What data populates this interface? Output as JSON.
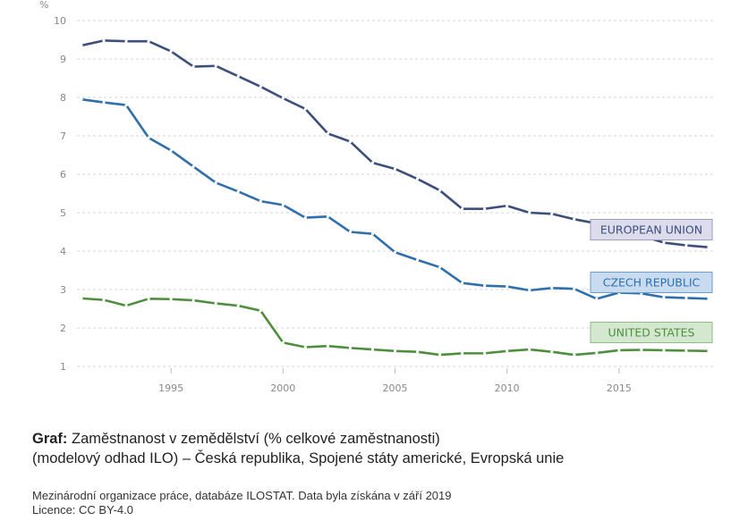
{
  "chart_data": {
    "type": "line",
    "ylabel": "%",
    "ylim": [
      1,
      10
    ],
    "yticks": [
      1,
      2,
      3,
      4,
      5,
      6,
      7,
      8,
      9,
      10
    ],
    "xlim": [
      1991,
      2019
    ],
    "xticks": [
      1995,
      2000,
      2005,
      2010,
      2015
    ],
    "x": [
      1991,
      1992,
      1993,
      1994,
      1995,
      1996,
      1997,
      1998,
      1999,
      2000,
      2001,
      2002,
      2003,
      2004,
      2005,
      2006,
      2007,
      2008,
      2009,
      2010,
      2011,
      2012,
      2013,
      2014,
      2015,
      2016,
      2017,
      2018,
      2019
    ],
    "grid": true,
    "series": [
      {
        "name": "EUROPEAN UNION",
        "color": "#3d4f7c",
        "label_bg": "#dcdced",
        "label_border": "#9a9ac2",
        "values": [
          9.35,
          9.48,
          9.46,
          9.46,
          9.2,
          8.8,
          8.82,
          8.55,
          8.28,
          7.98,
          7.7,
          7.06,
          6.85,
          6.3,
          6.14,
          5.88,
          5.58,
          5.1,
          5.1,
          5.18,
          5.0,
          4.97,
          4.83,
          4.72,
          4.55,
          4.4,
          4.22,
          4.15,
          4.1
        ]
      },
      {
        "name": "CZECH REPUBLIC",
        "color": "#2e6fae",
        "label_bg": "#c9dcef",
        "label_border": "#6f9cc8",
        "values": [
          7.95,
          7.87,
          7.8,
          6.95,
          6.62,
          6.2,
          5.78,
          5.55,
          5.3,
          5.2,
          4.87,
          4.9,
          4.5,
          4.45,
          3.97,
          3.77,
          3.58,
          3.17,
          3.1,
          3.08,
          2.98,
          3.04,
          3.02,
          2.76,
          2.92,
          2.9,
          2.8,
          2.78,
          2.76
        ]
      },
      {
        "name": "UNITED STATES",
        "color": "#4e8f3e",
        "label_bg": "#d4e8cf",
        "label_border": "#8fbc84",
        "values": [
          2.77,
          2.73,
          2.58,
          2.76,
          2.75,
          2.72,
          2.64,
          2.58,
          2.45,
          1.62,
          1.5,
          1.53,
          1.48,
          1.44,
          1.4,
          1.38,
          1.3,
          1.34,
          1.34,
          1.4,
          1.44,
          1.38,
          1.3,
          1.35,
          1.42,
          1.43,
          1.42,
          1.41,
          1.4
        ]
      }
    ]
  },
  "caption": {
    "bold": "Graf:",
    "line1": " Zaměstnanost v zemědělství (% celkové zaměstnanosti)",
    "line2": "(modelový odhad ILO) – Česká republika, Spojené státy americké, Evropská unie"
  },
  "source": {
    "line1": "Mezinárodní organizace práce, databáze ILOSTAT. Data byla získána v září 2019",
    "line2": "Licence: CC BY-4.0"
  }
}
